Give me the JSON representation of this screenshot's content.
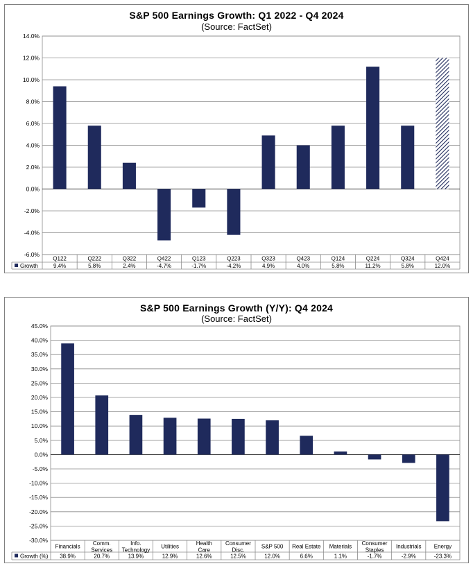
{
  "chart_data": [
    {
      "type": "bar",
      "title": "S&P 500 Earnings Growth: Q1 2022 - Q4 2024",
      "subtitle": "(Source: FactSet)",
      "xlabel": "",
      "ylabel": "",
      "ylim": [
        -6,
        14
      ],
      "ytick_step": 2,
      "ytick_decimals": 1,
      "grid": true,
      "legend": "table-below",
      "bar_color": "#1f2a5c",
      "hatched_last": true,
      "categories": [
        "Q122",
        "Q222",
        "Q322",
        "Q422",
        "Q123",
        "Q223",
        "Q323",
        "Q423",
        "Q124",
        "Q224",
        "Q324",
        "Q424"
      ],
      "series": [
        {
          "name": "Growth",
          "values": [
            9.4,
            5.8,
            2.4,
            -4.7,
            -1.7,
            -4.2,
            4.9,
            4.0,
            5.8,
            11.2,
            5.8,
            12.0
          ],
          "labels": [
            "9.4%",
            "5.8%",
            "2.4%",
            "-4.7%",
            "-1.7%",
            "-4.2%",
            "4.9%",
            "4.0%",
            "5.8%",
            "11.2%",
            "5.8%",
            "12.0%"
          ]
        }
      ]
    },
    {
      "type": "bar",
      "title": "S&P 500 Earnings Growth (Y/Y): Q4 2024",
      "subtitle": "(Source: FactSet)",
      "xlabel": "",
      "ylabel": "",
      "ylim": [
        -30,
        45
      ],
      "ytick_step": 5,
      "ytick_decimals": 1,
      "grid": true,
      "legend": "table-below",
      "bar_color": "#1f2a5c",
      "hatched_last": false,
      "categories": [
        [
          "Financials"
        ],
        [
          "Comm.",
          "Services"
        ],
        [
          "Info.",
          "Technology"
        ],
        [
          "Utilities"
        ],
        [
          "Health",
          "Care"
        ],
        [
          "Consumer",
          "Disc."
        ],
        [
          "S&P 500"
        ],
        [
          "Real Estate"
        ],
        [
          "Materials"
        ],
        [
          "Consumer",
          "Staples"
        ],
        [
          "Industrials"
        ],
        [
          "Energy"
        ]
      ],
      "series": [
        {
          "name": "Growth (%)",
          "values": [
            38.9,
            20.7,
            13.9,
            12.9,
            12.6,
            12.5,
            12.0,
            6.6,
            1.1,
            -1.7,
            -2.9,
            -23.3
          ],
          "labels": [
            "38.9%",
            "20.7%",
            "13.9%",
            "12.9%",
            "12.6%",
            "12.5%",
            "12.0%",
            "6.6%",
            "1.1%",
            "-1.7%",
            "-2.9%",
            "-23.3%"
          ]
        }
      ]
    }
  ]
}
